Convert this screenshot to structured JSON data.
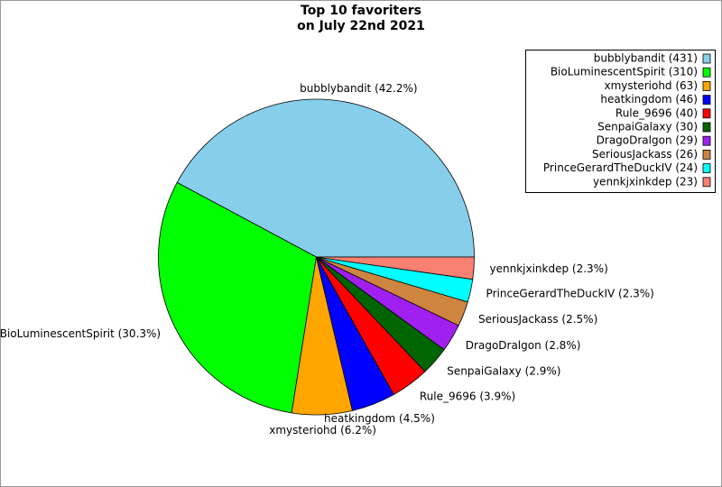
{
  "chart_data": {
    "type": "pie",
    "title": [
      "Top 10 favoriters",
      "on July 22nd 2021"
    ],
    "categories": [
      "bubblybandit (431)",
      "BioLuminescentSpirit (310)",
      "xmysteriohd (63)",
      "heatkingdom (46)",
      "Rule_9696 (40)",
      "SenpaiGalaxy (30)",
      "DragoDralgon (29)",
      "SeriousJackass (26)",
      "PrinceGerardTheDuckIV (24)",
      "yennkjxinkdep (23)"
    ],
    "values": [
      431,
      310,
      63,
      46,
      40,
      30,
      29,
      26,
      24,
      23
    ],
    "value_labels": [
      "bubblybandit (42.2%)",
      "BioLuminescentSpirit (30.3%)",
      "xmysteriohd (6.2%)",
      "heatkingdom (4.5%)",
      "Rule_9696 (3.9%)",
      "SenpaiGalaxy (2.9%)",
      "DragoDralgon (2.8%)",
      "SeriousJackass (2.5%)",
      "PrinceGerardTheDuckIV (2.3%)",
      "yennkjxinkdep (2.3%)"
    ],
    "colors": [
      "#87ceeb",
      "#00ff00",
      "#ffa500",
      "#0000ff",
      "#ff0000",
      "#006400",
      "#a020f0",
      "#cd853f",
      "#00ffff",
      "#fa8072"
    ],
    "legend": "upper right"
  }
}
